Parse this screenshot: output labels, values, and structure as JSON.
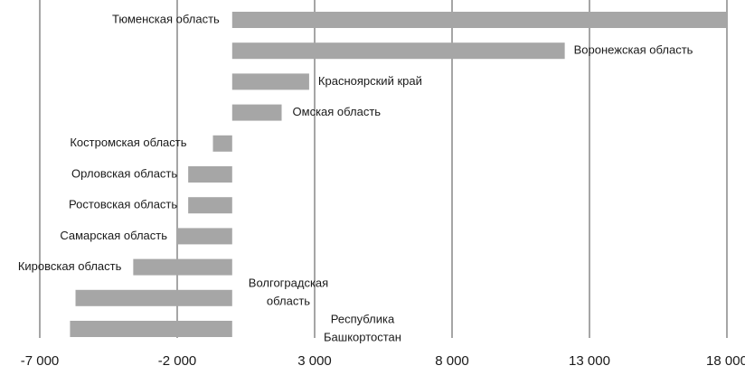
{
  "chart_data": {
    "type": "bar",
    "orientation": "horizontal",
    "title": "",
    "xlabel": "",
    "ylabel": "",
    "xlim": [
      -7000,
      18000
    ],
    "x_ticks": [
      -7000,
      -2000,
      3000,
      8000,
      13000,
      18000
    ],
    "x_tick_labels": [
      "-7 000",
      "-2 000",
      "3 000",
      "8 000",
      "13 000",
      "18 000"
    ],
    "grid": "vertical",
    "categories": [
      "Тюменская область",
      "Воронежская область",
      "Красноярский край",
      "Омская область",
      "Костромская область",
      "Орловская область",
      "Ростовская область",
      "Самарская область",
      "Кировская область",
      "Волгоградская область",
      "Республика Башкортостан"
    ],
    "label_lines": [
      [
        "Тюменская область"
      ],
      [
        "Воронежская область"
      ],
      [
        "Красноярский край"
      ],
      [
        "Омская область"
      ],
      [
        "Костромская область"
      ],
      [
        "Орловская область"
      ],
      [
        "Ростовская область"
      ],
      [
        "Самарская область"
      ],
      [
        "Кировская область"
      ],
      [
        "Волгоградская",
        "область"
      ],
      [
        "Республика",
        "Башкортостан"
      ]
    ],
    "values": [
      18000,
      12100,
      2800,
      1800,
      -700,
      -1600,
      -1600,
      -2000,
      -3600,
      -5700,
      -5900
    ],
    "bar_color": "#a6a6a6",
    "grid_color": "#7f7f7f"
  }
}
